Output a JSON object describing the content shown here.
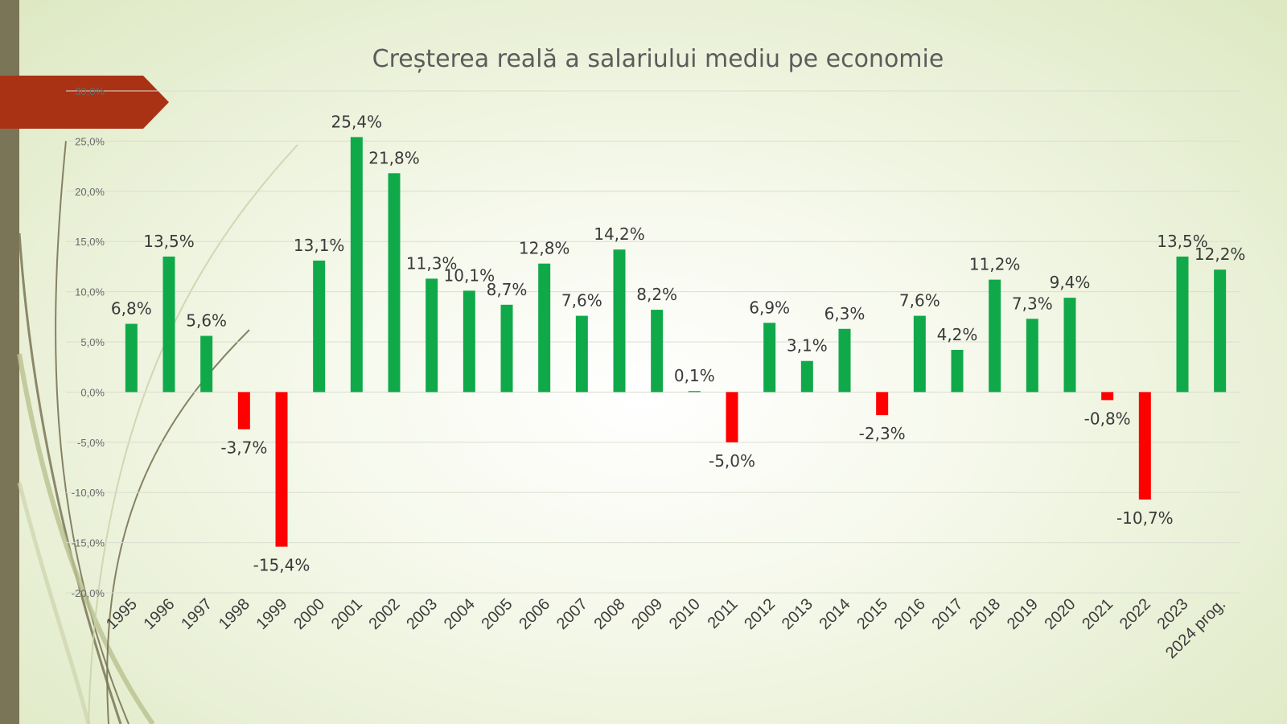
{
  "colors": {
    "positive": "#10a94a",
    "negative": "#ff0000",
    "accent_arrow": "#a93214",
    "sidebar": "#7a7556"
  },
  "chart_data": {
    "type": "bar",
    "title": "Creșterea reală a salariului mediu pe economie",
    "categories": [
      "1995",
      "1996",
      "1997",
      "1998",
      "1999",
      "2000",
      "2001",
      "2002",
      "2003",
      "2004",
      "2005",
      "2006",
      "2007",
      "2008",
      "2009",
      "2010",
      "2011",
      "2012",
      "2013",
      "2014",
      "2015",
      "2016",
      "2017",
      "2018",
      "2019",
      "2020",
      "2021",
      "2022",
      "2023",
      "2024 prog."
    ],
    "values": [
      6.8,
      13.5,
      5.6,
      -3.7,
      -15.4,
      13.1,
      25.4,
      21.8,
      11.3,
      10.1,
      8.7,
      12.8,
      7.6,
      14.2,
      8.2,
      0.1,
      -5.0,
      6.9,
      3.1,
      6.3,
      -2.3,
      7.6,
      4.2,
      11.2,
      7.3,
      9.4,
      -0.8,
      -10.7,
      13.5,
      12.2
    ],
    "data_labels": [
      "6,8%",
      "13,5%",
      "5,6%",
      "-3,7%",
      "-15,4%",
      "13,1%",
      "25,4%",
      "21,8%",
      "11,3%",
      "10,1%",
      "8,7%",
      "12,8%",
      "7,6%",
      "14,2%",
      "8,2%",
      "0,1%",
      "-5,0%",
      "6,9%",
      "3,1%",
      "6,3%",
      "-2,3%",
      "7,6%",
      "4,2%",
      "11,2%",
      "7,3%",
      "9,4%",
      "-0,8%",
      "-10,7%",
      "13,5%",
      "12,2%"
    ],
    "y_ticks": [
      30,
      25,
      20,
      15,
      10,
      5,
      0,
      -5,
      -10,
      -15,
      -20
    ],
    "y_tick_labels": [
      "30,0%",
      "25,0%",
      "20,0%",
      "15,0%",
      "10,0%",
      "5,0%",
      "0,0%",
      "-5,0%",
      "-10,0%",
      "-15,0%",
      "-20,0%"
    ],
    "ylim": [
      -20,
      30
    ],
    "xlabel": "",
    "ylabel": "",
    "grid": true,
    "legend": "none"
  }
}
